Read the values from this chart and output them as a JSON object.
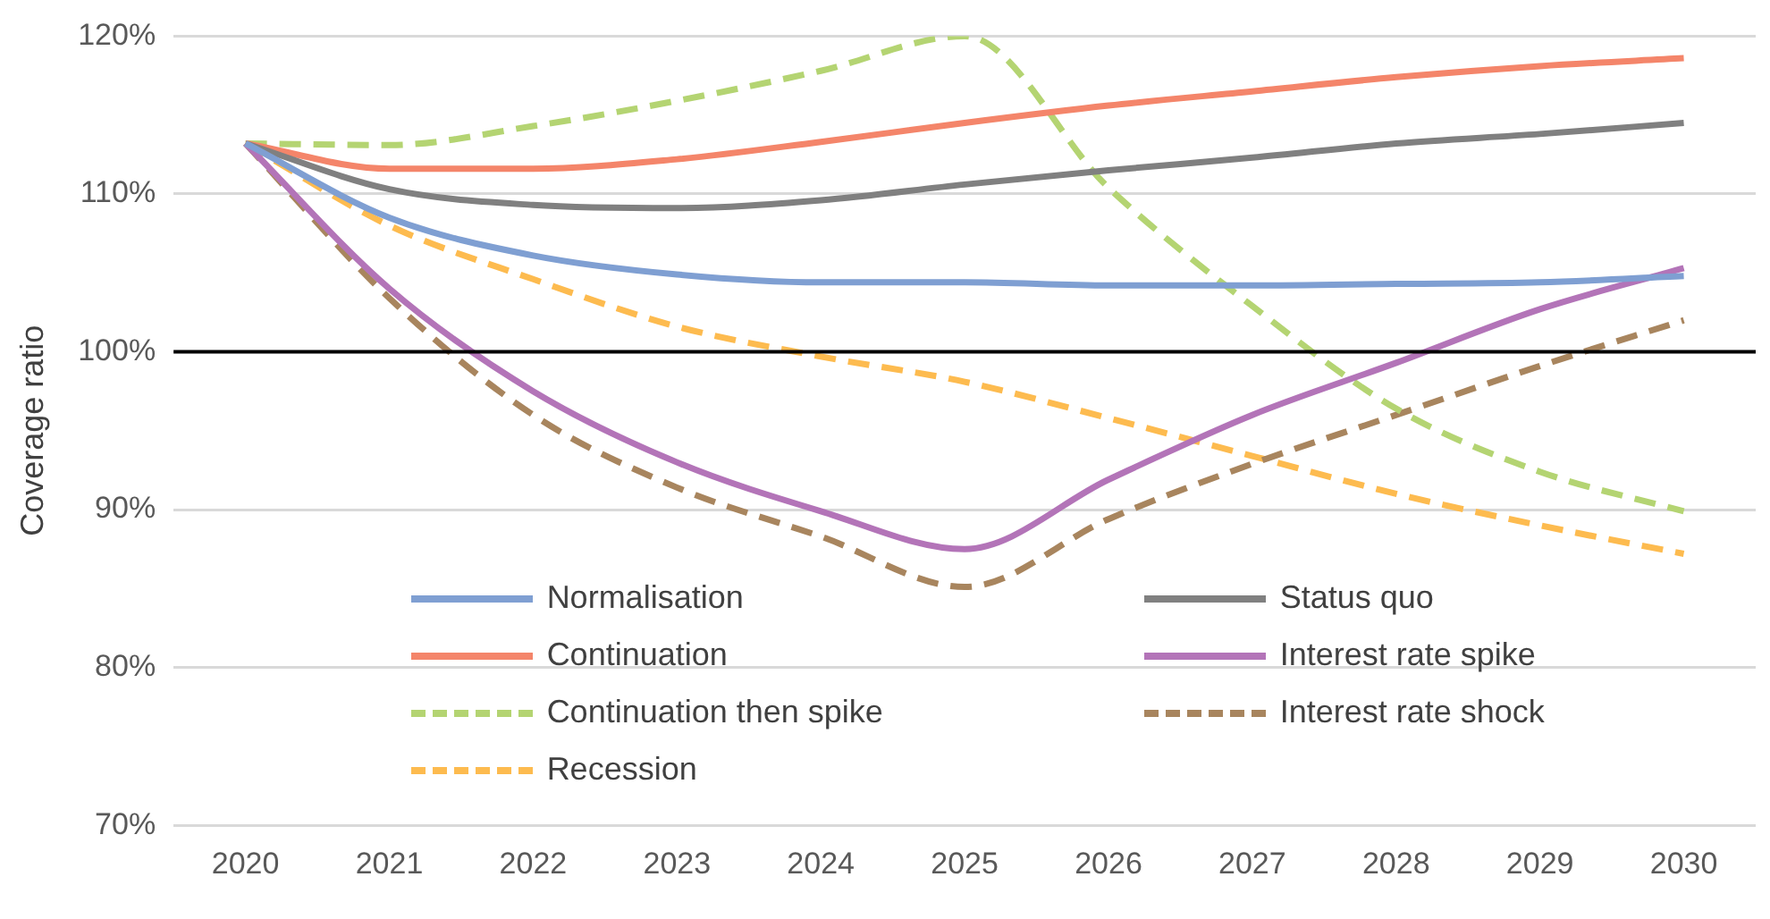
{
  "chart_data": {
    "type": "line",
    "ylabel": "Coverage ratio",
    "categories": [
      "2020",
      "2021",
      "2022",
      "2023",
      "2024",
      "2025",
      "2026",
      "2027",
      "2028",
      "2029",
      "2030"
    ],
    "series": [
      {
        "name": "Normalisation",
        "color": "#7f9fd2",
        "line_style": "solid",
        "values": [
          113.2,
          108.5,
          106.1,
          104.9,
          104.4,
          104.4,
          104.2,
          104.2,
          104.3,
          104.4,
          104.8
        ]
      },
      {
        "name": "Status quo",
        "color": "#808080",
        "line_style": "solid",
        "values": [
          113.2,
          110.3,
          109.3,
          109.1,
          109.6,
          110.6,
          111.5,
          112.3,
          113.2,
          113.8,
          114.5
        ]
      },
      {
        "name": "Continuation",
        "color": "#f4856a",
        "line_style": "solid",
        "values": [
          113.2,
          111.6,
          111.6,
          112.2,
          113.3,
          114.5,
          115.6,
          116.5,
          117.4,
          118.1,
          118.6
        ]
      },
      {
        "name": "Interest rate spike",
        "color": "#b374b8",
        "line_style": "solid",
        "values": [
          113.2,
          104.0,
          97.5,
          93.0,
          89.9,
          87.5,
          91.9,
          96.0,
          99.3,
          102.7,
          105.3
        ]
      },
      {
        "name": "Continuation then spike",
        "color": "#b4d472",
        "line_style": "dashed",
        "values": [
          113.2,
          113.1,
          114.3,
          115.9,
          117.8,
          120.0,
          110.4,
          102.9,
          96.4,
          92.4,
          89.9
        ]
      },
      {
        "name": "Interest rate shock",
        "color": "#a8855e",
        "line_style": "dashed",
        "values": [
          113.2,
          103.4,
          96.0,
          91.4,
          88.3,
          85.1,
          89.4,
          92.9,
          96.0,
          99.1,
          102.0
        ]
      },
      {
        "name": "Recession",
        "color": "#fdbb4f",
        "line_style": "dashed",
        "values": [
          113.2,
          108.0,
          104.6,
          101.6,
          99.7,
          98.1,
          95.8,
          93.4,
          91.0,
          89.0,
          87.2
        ]
      }
    ],
    "ylim": [
      70,
      120
    ],
    "yticks": [
      {
        "value": 70,
        "label": "70%"
      },
      {
        "value": 80,
        "label": "80%"
      },
      {
        "value": 90,
        "label": "90%"
      },
      {
        "value": 100,
        "label": "100%"
      },
      {
        "value": 110,
        "label": "110%"
      },
      {
        "value": 120,
        "label": "120%"
      }
    ],
    "ref_lines": [
      {
        "axis": "y",
        "value": 100,
        "color": "#000000"
      }
    ],
    "grid": "y",
    "legend": "bottom",
    "marker": "none"
  }
}
